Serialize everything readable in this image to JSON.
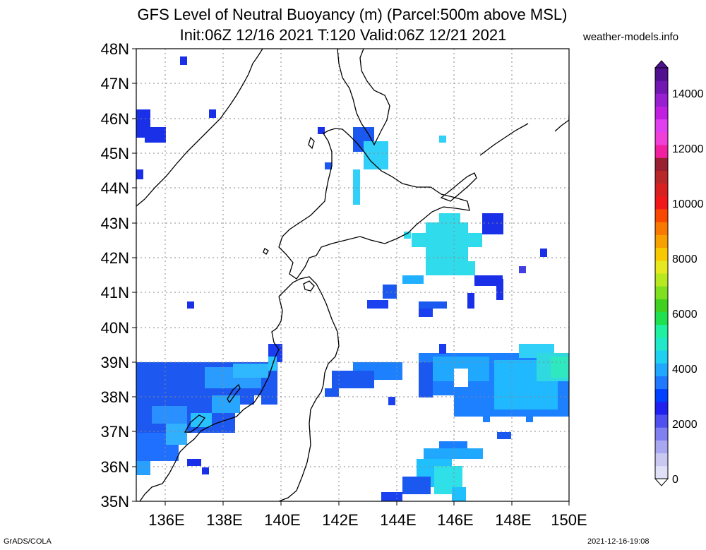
{
  "header": {
    "title_line1": "GFS Level of Neutral Buoyancy (m) (Parcel:500m above MSL)",
    "title_line2": "Init:06Z 12/16 2021 T:120 Valid:06Z 12/21 2021",
    "source": "weather-models.info"
  },
  "footer": {
    "left": "GrADS/COLA",
    "right": "2021-12-16-19:08"
  },
  "map": {
    "lat_labels": [
      "48N",
      "47N",
      "46N",
      "45N",
      "44N",
      "43N",
      "42N",
      "41N",
      "40N",
      "39N",
      "38N",
      "37N",
      "36N",
      "35N"
    ],
    "lon_labels": [
      "136E",
      "138E",
      "140E",
      "142E",
      "144E",
      "146E",
      "148E",
      "150E"
    ],
    "lat_range": [
      35,
      48
    ],
    "lon_range": [
      135,
      150
    ]
  },
  "colorbar": {
    "labels": [
      "14000",
      "12000",
      "10000",
      "8000",
      "6000",
      "4000",
      "2000",
      "0"
    ],
    "colors": [
      "#e0e0f8",
      "#c8c8f0",
      "#a8a8f0",
      "#8080f0",
      "#5050f0",
      "#2020f0",
      "#0040ff",
      "#2078ff",
      "#20a8ff",
      "#20d0f0",
      "#20e8c8",
      "#20f0a0",
      "#20e050",
      "#40d020",
      "#80e020",
      "#b8e820",
      "#e8e820",
      "#f8c800",
      "#f8a000",
      "#f87800",
      "#f84800",
      "#f01818",
      "#d82020",
      "#b82828",
      "#982030",
      "#f020a0",
      "#f040d8",
      "#e040f0",
      "#c020e0",
      "#9820d0",
      "#7018b0",
      "#501090"
    ],
    "color_coast": "#000000",
    "color_grid": "#888888"
  }
}
